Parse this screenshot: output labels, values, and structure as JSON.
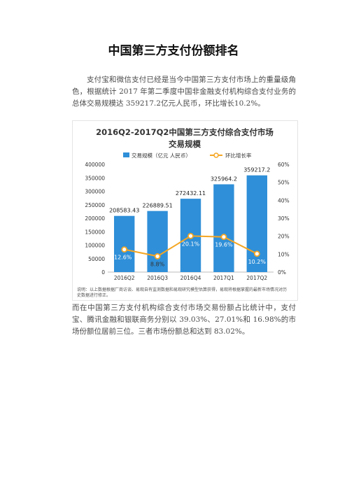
{
  "document": {
    "title": "中国第三方支付份额排名",
    "paragraph1": "支付宝和微信支付已经是当今中国第三方支付市场上的重量级角色，根据统计 2017 年第二季度中国非金融支付机构综合支付业务的总体交易规模达 359217.2亿元人民币，环比增长10.2%。",
    "paragraph2": "而在中国第三方支付机构综合支付市场交易份额占比统计中，支付宝、腾讯金融和银联商务分别以 39.03%、27.01%和 16.98%的市场份额位居前三位。三者市场份额总和达到 83.02%。"
  },
  "chart_data": {
    "type": "bar",
    "title_line1": "2016Q2-2017Q2中国第三方支付综合支付市场",
    "title_line2": "交易规模",
    "categories": [
      "2016Q2",
      "2016Q3",
      "2016Q4",
      "2017Q1",
      "2017Q2"
    ],
    "series": [
      {
        "name": "交易规模（亿元 人民币）",
        "type": "bar",
        "axis": "left",
        "color": "#2f8fd8",
        "values": [
          208583.43,
          226889.51,
          272432.11,
          325964.2,
          359217.2
        ],
        "labels": [
          "208583.43",
          "226889.51",
          "272432.11",
          "325964.2",
          "359217.2"
        ]
      },
      {
        "name": "环比增长率",
        "type": "line",
        "axis": "right",
        "color": "#f5a623",
        "values": [
          12.6,
          8.8,
          20.1,
          19.6,
          10.2
        ],
        "labels": [
          "12.6%",
          "8.8%",
          "20.1%",
          "19.6%",
          "10.2%"
        ]
      }
    ],
    "y_left": {
      "ylim": [
        0,
        400000
      ],
      "ticks": [
        0,
        50000,
        100000,
        150000,
        200000,
        250000,
        300000,
        350000,
        400000
      ]
    },
    "y_right": {
      "ylim": [
        0,
        60
      ],
      "ticks": [
        "0%",
        "10%",
        "20%",
        "30%",
        "40%",
        "50%",
        "60%"
      ]
    },
    "legend_placement": "top",
    "grid": false,
    "note": "说明：以上数据根据厂商访谈、易观自有监测数据和易观研究模型估算获得，易观将根据掌握的最新市场情况对历史数据进行修正。"
  }
}
